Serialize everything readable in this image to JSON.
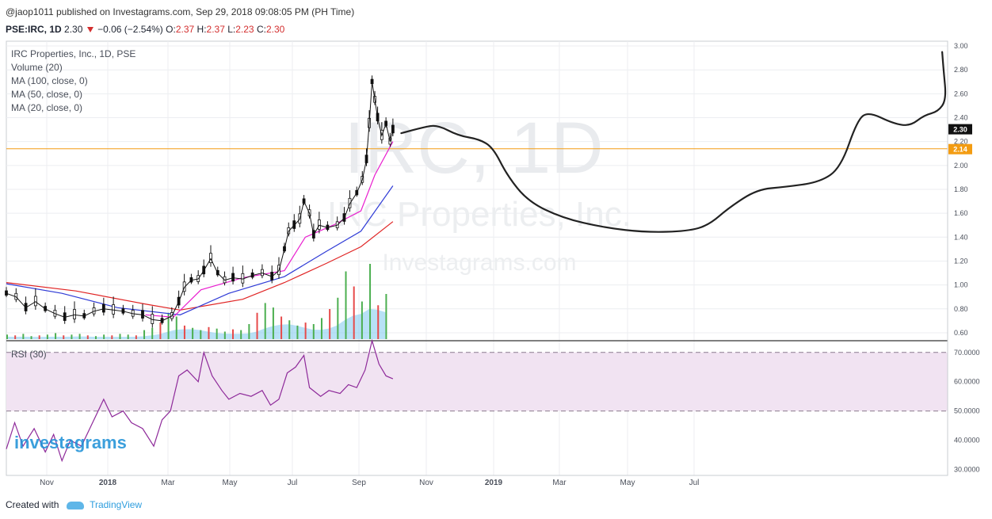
{
  "header": {
    "publisher": "@jaop1011 published on Investagrams.com, Sep 29, 2018 09:08:05 PM (PH Time)",
    "symbol": "PSE:IRC, 1D",
    "last": "2.30",
    "change": "−0.06 (−2.54%)",
    "o_label": "O:",
    "o": "2.37",
    "h_label": "H:",
    "h": "2.37",
    "l_label": "L:",
    "l": "2.23",
    "c_label": "C:",
    "c": "2.30"
  },
  "legend": [
    "IRC Properties, Inc., 1D, PSE",
    "Volume (20)",
    "MA (100, close, 0)",
    "MA (50, close, 0)",
    "MA (20, close, 0)"
  ],
  "watermark": {
    "big": "IRC, 1D",
    "name": "IRC Properties, Inc.",
    "site": "Investagrams.com"
  },
  "logo_text": "investagrams",
  "rsi_label": "RSI (30)",
  "footer": {
    "created": "Created with",
    "brand": "TradingView"
  },
  "colors": {
    "ma20": "#e91ecf",
    "ma50": "#2f3bd6",
    "ma100": "#e02424",
    "rsi": "#8e2a9a",
    "rsi_band": "#f1e3f2",
    "hline": "#f39c12",
    "vol_up": "#4caf50",
    "vol_down": "#e64a4a",
    "vol_ma": "#7ec8ef"
  },
  "chart_data": {
    "type": "line",
    "price_axis": {
      "ticks": [
        "3.00",
        "2.80",
        "2.60",
        "2.40",
        "2.20",
        "2.00",
        "1.80",
        "1.60",
        "1.40",
        "1.20",
        "1.00",
        "0.80",
        "0.60"
      ],
      "ylim": [
        0.54,
        3.04
      ]
    },
    "rsi_axis": {
      "ticks": [
        "70.0000",
        "60.0000",
        "50.0000",
        "40.0000",
        "30.0000"
      ],
      "ylim": [
        28,
        74
      ],
      "band": [
        50,
        70
      ]
    },
    "x_ticks": [
      "Nov",
      "2018",
      "Mar",
      "May",
      "Jul",
      "Sep",
      "Nov",
      "2019",
      "Mar",
      "May",
      "Jul"
    ],
    "last_price_label": "2.30",
    "hline_label": "2.14",
    "hline_value": 2.14,
    "price_series": [
      {
        "t": 0,
        "p": 0.93
      },
      {
        "t": 7,
        "p": 0.9
      },
      {
        "t": 14,
        "p": 0.81
      },
      {
        "t": 21,
        "p": 0.86
      },
      {
        "t": 28,
        "p": 0.8
      },
      {
        "t": 35,
        "p": 0.76
      },
      {
        "t": 42,
        "p": 0.73
      },
      {
        "t": 49,
        "p": 0.75
      },
      {
        "t": 56,
        "p": 0.74
      },
      {
        "t": 63,
        "p": 0.78
      },
      {
        "t": 70,
        "p": 0.8
      },
      {
        "t": 77,
        "p": 0.79
      },
      {
        "t": 84,
        "p": 0.78
      },
      {
        "t": 91,
        "p": 0.76
      },
      {
        "t": 98,
        "p": 0.75
      },
      {
        "t": 105,
        "p": 0.71
      },
      {
        "t": 112,
        "p": 0.7
      },
      {
        "t": 119,
        "p": 0.74
      },
      {
        "t": 124,
        "p": 0.86
      },
      {
        "t": 128,
        "p": 0.98
      },
      {
        "t": 133,
        "p": 1.04
      },
      {
        "t": 138,
        "p": 1.05
      },
      {
        "t": 142,
        "p": 1.12
      },
      {
        "t": 147,
        "p": 1.22
      },
      {
        "t": 152,
        "p": 1.1
      },
      {
        "t": 157,
        "p": 1.04
      },
      {
        "t": 163,
        "p": 1.06
      },
      {
        "t": 170,
        "p": 1.05
      },
      {
        "t": 177,
        "p": 1.08
      },
      {
        "t": 184,
        "p": 1.1
      },
      {
        "t": 191,
        "p": 1.07
      },
      {
        "t": 196,
        "p": 1.12
      },
      {
        "t": 200,
        "p": 1.3
      },
      {
        "t": 203,
        "p": 1.45
      },
      {
        "t": 207,
        "p": 1.5
      },
      {
        "t": 211,
        "p": 1.55
      },
      {
        "t": 214,
        "p": 1.7
      },
      {
        "t": 218,
        "p": 1.6
      },
      {
        "t": 221,
        "p": 1.42
      },
      {
        "t": 225,
        "p": 1.5
      },
      {
        "t": 231,
        "p": 1.48
      },
      {
        "t": 238,
        "p": 1.5
      },
      {
        "t": 243,
        "p": 1.56
      },
      {
        "t": 247,
        "p": 1.68
      },
      {
        "t": 252,
        "p": 1.77
      },
      {
        "t": 256,
        "p": 1.88
      },
      {
        "t": 259,
        "p": 2.05
      },
      {
        "t": 261,
        "p": 2.35
      },
      {
        "t": 263,
        "p": 2.7
      },
      {
        "t": 265,
        "p": 2.55
      },
      {
        "t": 267,
        "p": 2.4
      },
      {
        "t": 270,
        "p": 2.25
      },
      {
        "t": 273,
        "p": 2.35
      },
      {
        "t": 276,
        "p": 2.2
      },
      {
        "t": 278,
        "p": 2.3
      }
    ],
    "ma20": [
      {
        "t": 100,
        "p": 0.75
      },
      {
        "t": 120,
        "p": 0.73
      },
      {
        "t": 140,
        "p": 0.96
      },
      {
        "t": 170,
        "p": 1.06
      },
      {
        "t": 200,
        "p": 1.12
      },
      {
        "t": 215,
        "p": 1.4
      },
      {
        "t": 235,
        "p": 1.5
      },
      {
        "t": 255,
        "p": 1.62
      },
      {
        "t": 265,
        "p": 1.92
      },
      {
        "t": 278,
        "p": 2.2
      }
    ],
    "ma50": [
      {
        "t": 0,
        "p": 1.01
      },
      {
        "t": 40,
        "p": 0.93
      },
      {
        "t": 80,
        "p": 0.81
      },
      {
        "t": 125,
        "p": 0.75
      },
      {
        "t": 160,
        "p": 0.93
      },
      {
        "t": 200,
        "p": 1.07
      },
      {
        "t": 230,
        "p": 1.28
      },
      {
        "t": 255,
        "p": 1.45
      },
      {
        "t": 278,
        "p": 1.83
      }
    ],
    "ma100": [
      {
        "t": 0,
        "p": 1.02
      },
      {
        "t": 50,
        "p": 0.95
      },
      {
        "t": 100,
        "p": 0.84
      },
      {
        "t": 125,
        "p": 0.79
      },
      {
        "t": 170,
        "p": 0.88
      },
      {
        "t": 200,
        "p": 1.02
      },
      {
        "t": 230,
        "p": 1.18
      },
      {
        "t": 255,
        "p": 1.32
      },
      {
        "t": 278,
        "p": 1.53
      }
    ],
    "projection": [
      {
        "t": 284,
        "p": 2.27
      },
      {
        "t": 300,
        "p": 2.32
      },
      {
        "t": 310,
        "p": 2.34
      },
      {
        "t": 325,
        "p": 2.25
      },
      {
        "t": 340,
        "p": 2.22
      },
      {
        "t": 350,
        "p": 2.15
      },
      {
        "t": 360,
        "p": 1.92
      },
      {
        "t": 375,
        "p": 1.7
      },
      {
        "t": 400,
        "p": 1.56
      },
      {
        "t": 430,
        "p": 1.48
      },
      {
        "t": 460,
        "p": 1.44
      },
      {
        "t": 490,
        "p": 1.45
      },
      {
        "t": 505,
        "p": 1.5
      },
      {
        "t": 520,
        "p": 1.65
      },
      {
        "t": 540,
        "p": 1.8
      },
      {
        "t": 560,
        "p": 1.82
      },
      {
        "t": 585,
        "p": 1.86
      },
      {
        "t": 600,
        "p": 1.98
      },
      {
        "t": 612,
        "p": 2.38
      },
      {
        "t": 620,
        "p": 2.45
      },
      {
        "t": 638,
        "p": 2.35
      },
      {
        "t": 650,
        "p": 2.33
      },
      {
        "t": 660,
        "p": 2.42
      },
      {
        "t": 670,
        "p": 2.45
      },
      {
        "t": 676,
        "p": 2.55
      },
      {
        "t": 674,
        "p": 2.8
      },
      {
        "t": 673,
        "p": 2.95
      }
    ],
    "volume": [
      0.06,
      0.05,
      0.07,
      0.04,
      0.05,
      0.06,
      0.08,
      0.05,
      0.06,
      0.07,
      0.05,
      0.04,
      0.06,
      0.05,
      0.07,
      0.06,
      0.05,
      0.12,
      0.15,
      0.22,
      0.35,
      0.3,
      0.18,
      0.15,
      0.12,
      0.16,
      0.14,
      0.1,
      0.13,
      0.12,
      0.2,
      0.35,
      0.48,
      0.42,
      0.3,
      0.25,
      0.18,
      0.22,
      0.2,
      0.28,
      0.4,
      0.55,
      0.9,
      0.7,
      0.5,
      1.0,
      0.45,
      0.6
    ],
    "rsi": [
      {
        "t": 0,
        "p": 37
      },
      {
        "t": 6,
        "p": 46
      },
      {
        "t": 12,
        "p": 38
      },
      {
        "t": 20,
        "p": 44
      },
      {
        "t": 28,
        "p": 36
      },
      {
        "t": 34,
        "p": 42
      },
      {
        "t": 40,
        "p": 33
      },
      {
        "t": 46,
        "p": 40
      },
      {
        "t": 54,
        "p": 38
      },
      {
        "t": 62,
        "p": 46
      },
      {
        "t": 70,
        "p": 54
      },
      {
        "t": 76,
        "p": 48
      },
      {
        "t": 84,
        "p": 50
      },
      {
        "t": 90,
        "p": 46
      },
      {
        "t": 98,
        "p": 44
      },
      {
        "t": 106,
        "p": 38
      },
      {
        "t": 112,
        "p": 47
      },
      {
        "t": 118,
        "p": 50
      },
      {
        "t": 124,
        "p": 62
      },
      {
        "t": 130,
        "p": 64
      },
      {
        "t": 138,
        "p": 60
      },
      {
        "t": 142,
        "p": 70
      },
      {
        "t": 148,
        "p": 62
      },
      {
        "t": 155,
        "p": 57
      },
      {
        "t": 160,
        "p": 54
      },
      {
        "t": 168,
        "p": 56
      },
      {
        "t": 176,
        "p": 55
      },
      {
        "t": 184,
        "p": 57
      },
      {
        "t": 190,
        "p": 52
      },
      {
        "t": 196,
        "p": 54
      },
      {
        "t": 202,
        "p": 63
      },
      {
        "t": 208,
        "p": 65
      },
      {
        "t": 214,
        "p": 69
      },
      {
        "t": 218,
        "p": 58
      },
      {
        "t": 226,
        "p": 55
      },
      {
        "t": 232,
        "p": 57
      },
      {
        "t": 240,
        "p": 56
      },
      {
        "t": 246,
        "p": 59
      },
      {
        "t": 252,
        "p": 58
      },
      {
        "t": 258,
        "p": 64
      },
      {
        "t": 263,
        "p": 74
      },
      {
        "t": 268,
        "p": 66
      },
      {
        "t": 273,
        "p": 62
      },
      {
        "t": 278,
        "p": 61
      }
    ]
  }
}
